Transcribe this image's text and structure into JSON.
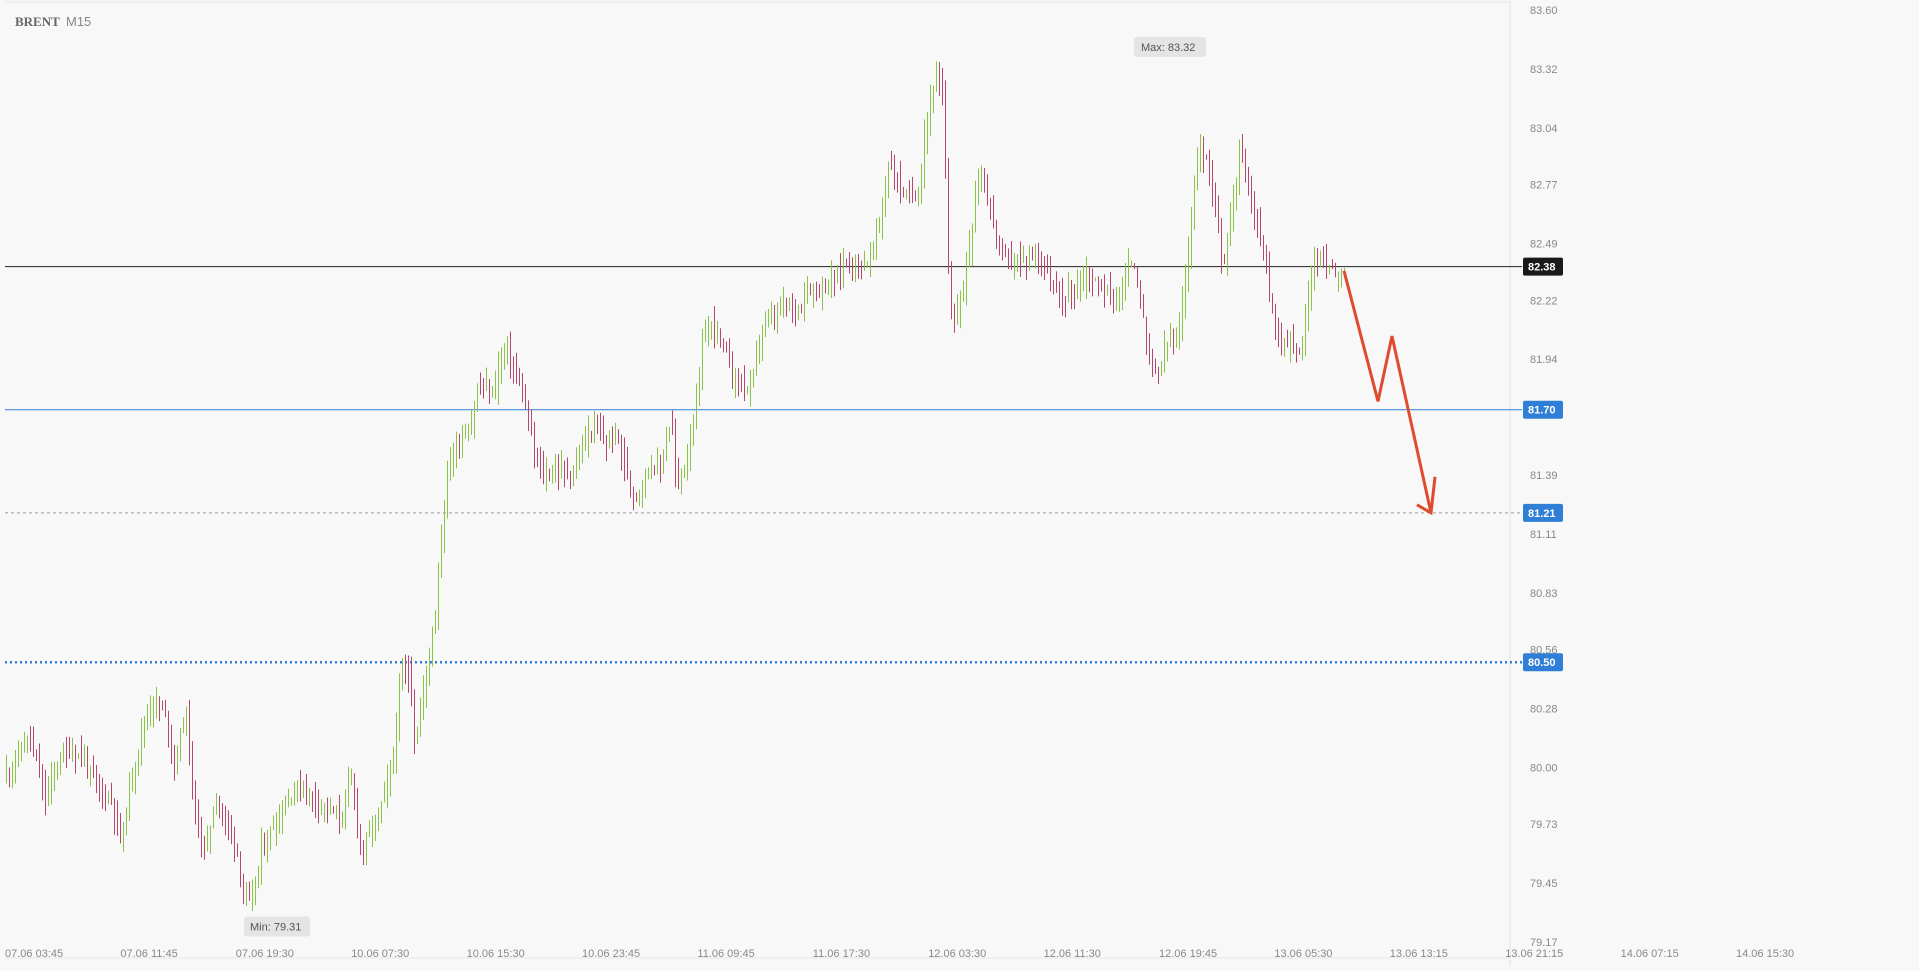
{
  "header": {
    "symbol": "BRENT",
    "timeframe": "M15"
  },
  "colors": {
    "background": "#f8f8f8",
    "up_candle": "#8bc34a",
    "down_candle": "#b5476e",
    "current_price_line": "#222222",
    "level_line": "#2f7fd6",
    "dashed_level": "#9a9a9a",
    "forecast_arrow": "#e04a2f",
    "axis_text": "#888888"
  },
  "chart_data": {
    "type": "candlestick",
    "symbol": "BRENT",
    "timeframe": "M15",
    "ylim": [
      79.17,
      83.6
    ],
    "y_ticks": [
      "83.60",
      "83.32",
      "83.04",
      "82.77",
      "82.49",
      "82.22",
      "81.94",
      "81.39",
      "81.11",
      "80.83",
      "80.56",
      "80.28",
      "80.00",
      "79.73",
      "79.45",
      "79.17"
    ],
    "x_ticks": [
      "07.06 03:45",
      "07.06 11:45",
      "07.06 19:30",
      "10.06 07:30",
      "10.06 15:30",
      "10.06 23:45",
      "11.06 09:45",
      "11.06 17:30",
      "12.06 03:30",
      "12.06 11:30",
      "12.06 19:45",
      "13.06 05:30",
      "13.06 13:15",
      "13.06 21:15",
      "14.06 07:15",
      "14.06 15:30"
    ],
    "current_price": {
      "label": "82.38",
      "value": 82.38
    },
    "levels": [
      {
        "label": "81.70",
        "value": 81.7,
        "style": "solid"
      },
      {
        "label": "81.21",
        "value": 81.21,
        "style": "dashed"
      },
      {
        "label": "80.50",
        "value": 80.5,
        "style": "dotted"
      }
    ],
    "annotations": [
      {
        "label": "Max: 83.32",
        "value": 83.32
      },
      {
        "label": "Min: 79.31",
        "value": 79.31
      }
    ],
    "price_path": [
      [
        0,
        79.95
      ],
      [
        14,
        80.05
      ],
      [
        26,
        80.15
      ],
      [
        42,
        79.85
      ],
      [
        56,
        80.05
      ],
      [
        66,
        80.08
      ],
      [
        80,
        80.05
      ],
      [
        94,
        79.9
      ],
      [
        108,
        79.85
      ],
      [
        118,
        79.65
      ],
      [
        128,
        79.95
      ],
      [
        140,
        80.2
      ],
      [
        150,
        80.32
      ],
      [
        162,
        80.25
      ],
      [
        172,
        80.0
      ],
      [
        182,
        80.3
      ],
      [
        192,
        79.75
      ],
      [
        202,
        79.6
      ],
      [
        212,
        79.85
      ],
      [
        222,
        79.75
      ],
      [
        232,
        79.65
      ],
      [
        240,
        79.4
      ],
      [
        248,
        79.35
      ],
      [
        258,
        79.6
      ],
      [
        268,
        79.7
      ],
      [
        280,
        79.8
      ],
      [
        290,
        79.9
      ],
      [
        300,
        79.9
      ],
      [
        312,
        79.85
      ],
      [
        322,
        79.82
      ],
      [
        336,
        79.75
      ],
      [
        348,
        79.95
      ],
      [
        358,
        79.6
      ],
      [
        368,
        79.7
      ],
      [
        380,
        79.85
      ],
      [
        390,
        80.05
      ],
      [
        398,
        80.45
      ],
      [
        406,
        80.45
      ],
      [
        412,
        80.1
      ],
      [
        418,
        80.3
      ],
      [
        426,
        80.55
      ],
      [
        432,
        80.75
      ],
      [
        438,
        81.1
      ],
      [
        444,
        81.4
      ],
      [
        450,
        81.5
      ],
      [
        456,
        81.55
      ],
      [
        462,
        81.6
      ],
      [
        468,
        81.62
      ],
      [
        474,
        81.8
      ],
      [
        482,
        81.8
      ],
      [
        490,
        81.78
      ],
      [
        496,
        81.92
      ],
      [
        502,
        82.0
      ],
      [
        508,
        81.92
      ],
      [
        514,
        81.85
      ],
      [
        520,
        81.75
      ],
      [
        526,
        81.6
      ],
      [
        534,
        81.45
      ],
      [
        540,
        81.38
      ],
      [
        548,
        81.4
      ],
      [
        556,
        81.42
      ],
      [
        564,
        81.4
      ],
      [
        570,
        81.4
      ],
      [
        578,
        81.5
      ],
      [
        586,
        81.6
      ],
      [
        594,
        81.6
      ],
      [
        600,
        81.55
      ],
      [
        608,
        81.55
      ],
      [
        614,
        81.6
      ],
      [
        620,
        81.45
      ],
      [
        626,
        81.35
      ],
      [
        632,
        81.3
      ],
      [
        638,
        81.35
      ],
      [
        644,
        81.42
      ],
      [
        650,
        81.45
      ],
      [
        656,
        81.4
      ],
      [
        662,
        81.55
      ],
      [
        668,
        81.65
      ],
      [
        672,
        81.4
      ],
      [
        676,
        81.35
      ],
      [
        682,
        81.45
      ],
      [
        688,
        81.6
      ],
      [
        694,
        81.75
      ],
      [
        700,
        82.05
      ],
      [
        706,
        82.1
      ],
      [
        712,
        82.1
      ],
      [
        718,
        82.0
      ],
      [
        724,
        81.95
      ],
      [
        730,
        81.85
      ],
      [
        736,
        81.85
      ],
      [
        742,
        81.8
      ],
      [
        748,
        81.8
      ],
      [
        754,
        82.0
      ],
      [
        760,
        82.1
      ],
      [
        766,
        82.12
      ],
      [
        772,
        82.15
      ],
      [
        778,
        82.18
      ],
      [
        784,
        82.2
      ],
      [
        790,
        82.18
      ],
      [
        796,
        82.2
      ],
      [
        802,
        82.25
      ],
      [
        808,
        82.28
      ],
      [
        814,
        82.28
      ],
      [
        820,
        82.28
      ],
      [
        826,
        82.3
      ],
      [
        832,
        82.32
      ],
      [
        840,
        82.4
      ],
      [
        848,
        82.4
      ],
      [
        856,
        82.4
      ],
      [
        862,
        82.38
      ],
      [
        868,
        82.45
      ],
      [
        874,
        82.55
      ],
      [
        880,
        82.7
      ],
      [
        886,
        82.88
      ],
      [
        892,
        82.8
      ],
      [
        898,
        82.75
      ],
      [
        904,
        82.7
      ],
      [
        910,
        82.72
      ],
      [
        916,
        82.75
      ],
      [
        922,
        83.05
      ],
      [
        928,
        83.18
      ],
      [
        932,
        83.28
      ],
      [
        936,
        83.25
      ],
      [
        940,
        83.15
      ],
      [
        944,
        82.45
      ],
      [
        950,
        82.1
      ],
      [
        956,
        82.2
      ],
      [
        962,
        82.35
      ],
      [
        968,
        82.55
      ],
      [
        974,
        82.8
      ],
      [
        980,
        82.8
      ],
      [
        986,
        82.65
      ],
      [
        992,
        82.55
      ],
      [
        998,
        82.45
      ],
      [
        1004,
        82.4
      ],
      [
        1010,
        82.42
      ],
      [
        1016,
        82.4
      ],
      [
        1022,
        82.4
      ],
      [
        1028,
        82.42
      ],
      [
        1034,
        82.45
      ],
      [
        1040,
        82.42
      ],
      [
        1046,
        82.3
      ],
      [
        1052,
        82.25
      ],
      [
        1058,
        82.22
      ],
      [
        1064,
        82.25
      ],
      [
        1070,
        82.28
      ],
      [
        1076,
        82.3
      ],
      [
        1082,
        82.35
      ],
      [
        1088,
        82.32
      ],
      [
        1094,
        82.3
      ],
      [
        1100,
        82.28
      ],
      [
        1106,
        82.25
      ],
      [
        1112,
        82.22
      ],
      [
        1118,
        82.25
      ],
      [
        1124,
        82.35
      ],
      [
        1130,
        82.42
      ],
      [
        1136,
        82.25
      ],
      [
        1142,
        82.05
      ],
      [
        1148,
        81.9
      ],
      [
        1154,
        81.88
      ],
      [
        1160,
        81.95
      ],
      [
        1166,
        82.05
      ],
      [
        1172,
        82.0
      ],
      [
        1178,
        82.15
      ],
      [
        1184,
        82.4
      ],
      [
        1190,
        82.75
      ],
      [
        1196,
        82.95
      ],
      [
        1202,
        82.9
      ],
      [
        1208,
        82.8
      ],
      [
        1214,
        82.65
      ],
      [
        1220,
        82.35
      ],
      [
        1226,
        82.6
      ],
      [
        1232,
        82.8
      ],
      [
        1238,
        82.95
      ],
      [
        1244,
        82.8
      ],
      [
        1250,
        82.65
      ],
      [
        1256,
        82.55
      ],
      [
        1262,
        82.4
      ],
      [
        1268,
        82.2
      ],
      [
        1274,
        82.05
      ],
      [
        1280,
        82.0
      ],
      [
        1286,
        82.05
      ],
      [
        1292,
        81.95
      ],
      [
        1298,
        82.0
      ],
      [
        1304,
        82.2
      ],
      [
        1310,
        82.38
      ],
      [
        1316,
        82.42
      ],
      [
        1322,
        82.4
      ],
      [
        1328,
        82.38
      ],
      [
        1334,
        82.35
      ],
      [
        1338,
        82.38
      ]
    ],
    "forecast_path": [
      [
        1338,
        82.36
      ],
      [
        1372,
        81.74
      ],
      [
        1386,
        82.05
      ],
      [
        1425,
        81.21
      ]
    ]
  }
}
